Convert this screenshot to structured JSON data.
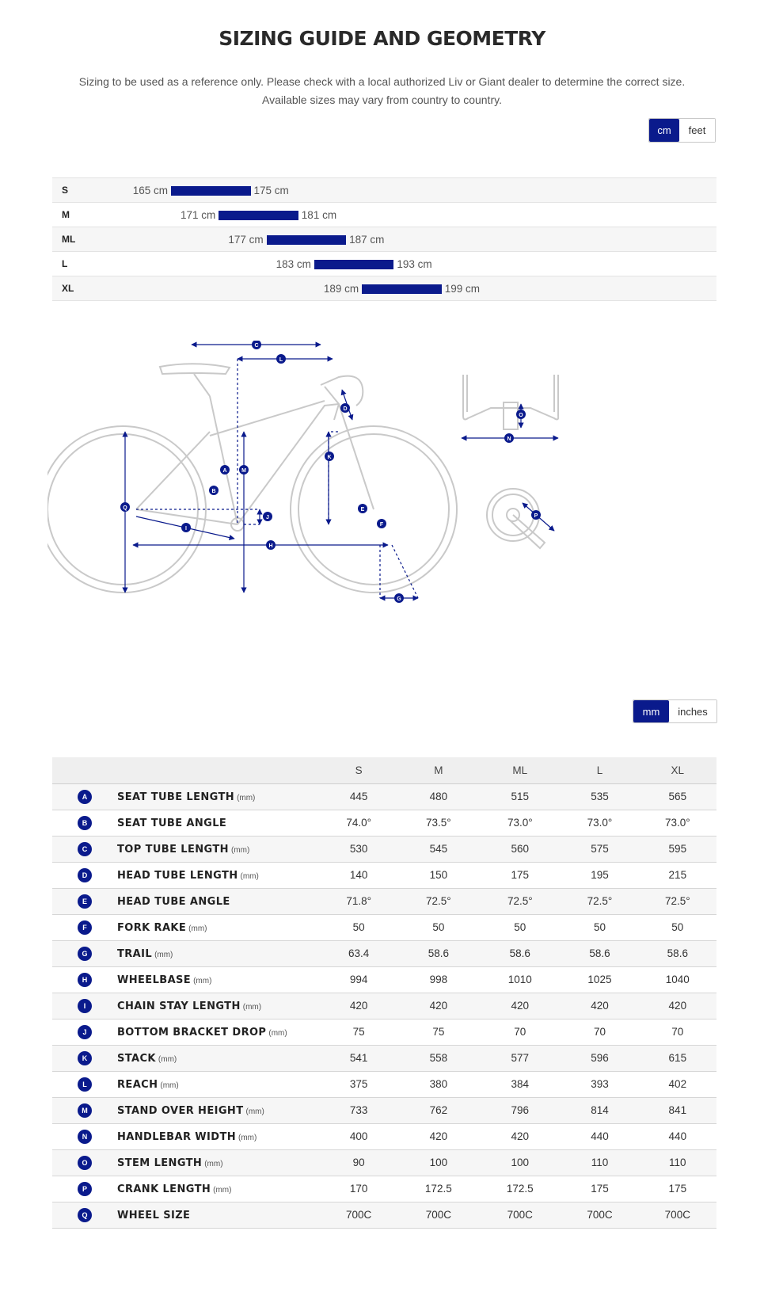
{
  "header": {
    "title": "SIZING GUIDE AND GEOMETRY",
    "subtitle_line1": "Sizing to be used as a reference only. Please check with a local authorized Liv or Giant dealer to determine the correct size.",
    "subtitle_line2": "Available sizes may vary from country to country."
  },
  "unit_toggle": {
    "options": [
      "cm",
      "feet"
    ],
    "selected": "cm"
  },
  "rider_sizes": [
    {
      "size": "S",
      "min": "165 cm",
      "max": "175 cm",
      "min_cm": 165,
      "max_cm": 175
    },
    {
      "size": "M",
      "min": "171 cm",
      "max": "181 cm",
      "min_cm": 171,
      "max_cm": 181
    },
    {
      "size": "ML",
      "min": "177 cm",
      "max": "187 cm",
      "min_cm": 177,
      "max_cm": 187
    },
    {
      "size": "L",
      "min": "183 cm",
      "max": "193 cm",
      "min_cm": 183,
      "max_cm": 193
    },
    {
      "size": "XL",
      "min": "189 cm",
      "max": "199 cm",
      "min_cm": 189,
      "max_cm": 199
    }
  ],
  "diagram_labels": [
    "A",
    "B",
    "C",
    "D",
    "E",
    "F",
    "G",
    "H",
    "I",
    "J",
    "K",
    "L",
    "M",
    "N",
    "O",
    "P",
    "Q"
  ],
  "length_toggle": {
    "options": [
      "mm",
      "inches"
    ],
    "selected": "mm"
  },
  "geometry": {
    "columns": [
      "S",
      "M",
      "ML",
      "L",
      "XL"
    ],
    "rows": [
      {
        "key": "A",
        "name": "SEAT TUBE LENGTH",
        "unit": "(mm)",
        "values": [
          "445",
          "480",
          "515",
          "535",
          "565"
        ]
      },
      {
        "key": "B",
        "name": "SEAT TUBE ANGLE",
        "unit": "",
        "values": [
          "74.0°",
          "73.5°",
          "73.0°",
          "73.0°",
          "73.0°"
        ]
      },
      {
        "key": "C",
        "name": "TOP TUBE LENGTH",
        "unit": "(mm)",
        "values": [
          "530",
          "545",
          "560",
          "575",
          "595"
        ]
      },
      {
        "key": "D",
        "name": "HEAD TUBE LENGTH",
        "unit": "(mm)",
        "values": [
          "140",
          "150",
          "175",
          "195",
          "215"
        ]
      },
      {
        "key": "E",
        "name": "HEAD TUBE ANGLE",
        "unit": "",
        "values": [
          "71.8°",
          "72.5°",
          "72.5°",
          "72.5°",
          "72.5°"
        ]
      },
      {
        "key": "F",
        "name": "FORK RAKE",
        "unit": "(mm)",
        "values": [
          "50",
          "50",
          "50",
          "50",
          "50"
        ]
      },
      {
        "key": "G",
        "name": "TRAIL",
        "unit": "(mm)",
        "values": [
          "63.4",
          "58.6",
          "58.6",
          "58.6",
          "58.6"
        ]
      },
      {
        "key": "H",
        "name": "WHEELBASE",
        "unit": "(mm)",
        "values": [
          "994",
          "998",
          "1010",
          "1025",
          "1040"
        ]
      },
      {
        "key": "I",
        "name": "CHAIN STAY LENGTH",
        "unit": "(mm)",
        "values": [
          "420",
          "420",
          "420",
          "420",
          "420"
        ]
      },
      {
        "key": "J",
        "name": "BOTTOM BRACKET DROP",
        "unit": "(mm)",
        "values": [
          "75",
          "75",
          "70",
          "70",
          "70"
        ]
      },
      {
        "key": "K",
        "name": "STACK",
        "unit": "(mm)",
        "values": [
          "541",
          "558",
          "577",
          "596",
          "615"
        ]
      },
      {
        "key": "L",
        "name": "REACH",
        "unit": "(mm)",
        "values": [
          "375",
          "380",
          "384",
          "393",
          "402"
        ]
      },
      {
        "key": "M",
        "name": "STAND OVER HEIGHT",
        "unit": "(mm)",
        "values": [
          "733",
          "762",
          "796",
          "814",
          "841"
        ]
      },
      {
        "key": "N",
        "name": "HANDLEBAR WIDTH",
        "unit": "(mm)",
        "values": [
          "400",
          "420",
          "420",
          "440",
          "440"
        ]
      },
      {
        "key": "O",
        "name": "STEM LENGTH",
        "unit": "(mm)",
        "values": [
          "90",
          "100",
          "100",
          "110",
          "110"
        ]
      },
      {
        "key": "P",
        "name": "CRANK LENGTH",
        "unit": "(mm)",
        "values": [
          "170",
          "172.5",
          "172.5",
          "175",
          "175"
        ]
      },
      {
        "key": "Q",
        "name": "WHEEL SIZE",
        "unit": "",
        "values": [
          "700C",
          "700C",
          "700C",
          "700C",
          "700C"
        ]
      }
    ]
  },
  "colors": {
    "accent": "#0a1a8c",
    "diagram_line": "#c9c9c9",
    "row_alt": "#f6f6f6"
  }
}
